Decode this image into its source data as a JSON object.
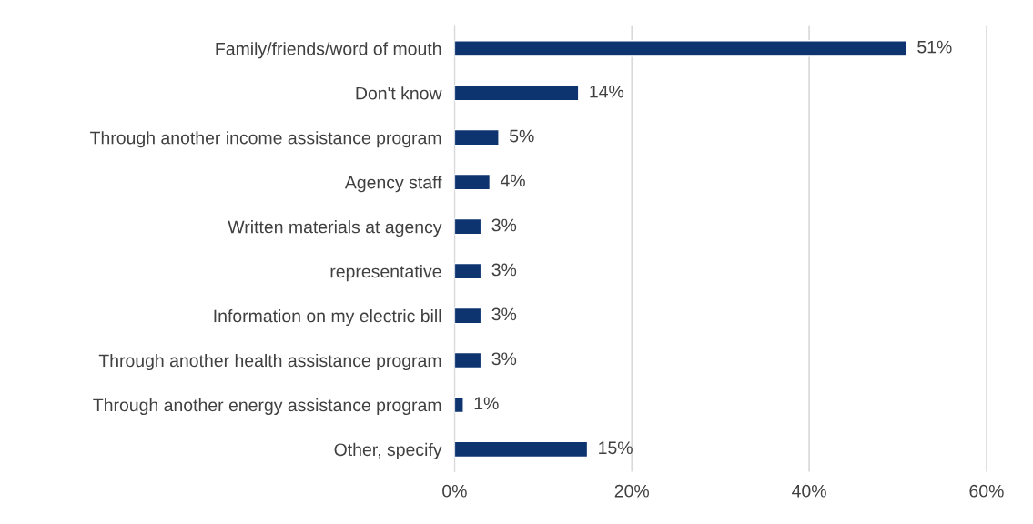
{
  "chart_data": {
    "type": "bar",
    "orientation": "horizontal",
    "categories": [
      "Family/friends/word of mouth",
      "Don't know",
      "Through another income assistance program",
      "Agency staff",
      "Written materials at agency",
      "representative",
      "Information on my electric bill",
      "Through another health assistance program",
      "Through another energy assistance program",
      "Other, specify"
    ],
    "values": [
      51,
      14,
      5,
      4,
      3,
      3,
      3,
      3,
      1,
      15
    ],
    "value_labels": [
      "51%",
      "14%",
      "5%",
      "4%",
      "3%",
      "3%",
      "3%",
      "3%",
      "1%",
      "15%"
    ],
    "color": "#0e3470",
    "xlim": [
      0,
      60
    ],
    "xticks": [
      {
        "value": 0,
        "label": "0%"
      },
      {
        "value": 20,
        "label": "20%"
      },
      {
        "value": 40,
        "label": "40%"
      },
      {
        "value": 60,
        "label": "60%"
      }
    ],
    "grid": "x"
  }
}
